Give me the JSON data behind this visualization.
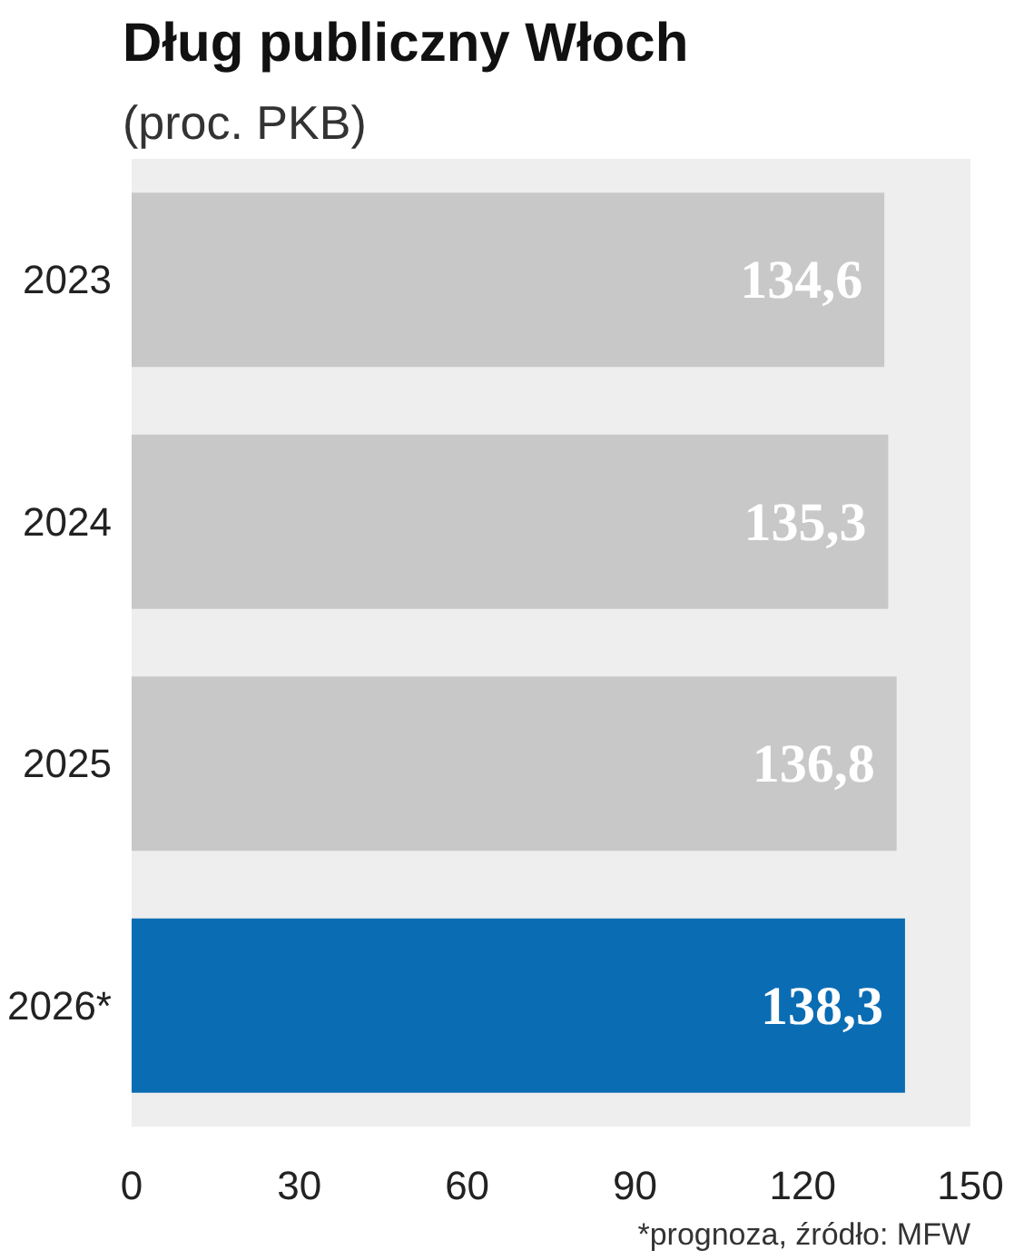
{
  "chart_data": {
    "type": "bar",
    "orientation": "horizontal",
    "title": "Dług publiczny Włoch",
    "subtitle": "(proc. PKB)",
    "categories": [
      "2023",
      "2024",
      "2025",
      "2026*"
    ],
    "values": [
      134.6,
      135.3,
      136.8,
      138.3
    ],
    "colors": [
      "#c8c8c8",
      "#c8c8c8",
      "#c8c8c8",
      "#0a6db3"
    ],
    "value_labels": [
      "134,6",
      "135,3",
      "136,8",
      "138,3"
    ],
    "xlim": [
      0,
      150
    ],
    "xticks": [
      0,
      30,
      60,
      90,
      120,
      150
    ],
    "grid": false,
    "annotations": [
      "*prognoza, źródło: MFW"
    ]
  }
}
